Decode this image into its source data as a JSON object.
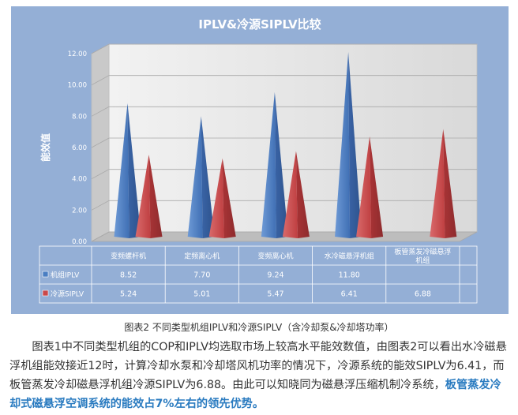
{
  "chart_data": {
    "type": "bar",
    "title": "IPLV&冷源SIPLV比较",
    "ylabel": "能效值",
    "ylim": [
      0,
      12
    ],
    "yticks": [
      "0.00",
      "2.00",
      "4.00",
      "6.00",
      "8.00",
      "10.00",
      "12.00"
    ],
    "categories": [
      "变频螺杆机",
      "定频离心机",
      "变频离心机",
      "水冷磁悬浮机组",
      "板管蒸发冷磁悬浮机组"
    ],
    "series": [
      {
        "name": "机组IPLV",
        "color": "#4a7ec2",
        "values": [
          8.52,
          7.7,
          9.24,
          11.8,
          null
        ],
        "labels": [
          "8.52",
          "7.70",
          "9.24",
          "11.80",
          ""
        ]
      },
      {
        "name": "冷源SIPLV",
        "color": "#c9484a",
        "values": [
          5.24,
          5.01,
          5.47,
          6.41,
          6.88
        ],
        "labels": [
          "5.24",
          "5.01",
          "5.47",
          "6.41",
          "6.88"
        ]
      }
    ],
    "background": "#94afd6",
    "wall": "#e6e6e6"
  },
  "caption": "图表2  不同类型机组IPLV和冷源SIPLV（含冷却泵&冷却塔功率）",
  "paragraph": {
    "text": "图表1中不同类型机组的COP和IPLV均选取市场上较高水平能效数值，由图表2可以看出水冷磁悬浮机组能效接近12时，计算冷却水泵和冷却塔风机功率的情况下，冷源系统的能效SIPLV为6.41，而板管蒸发冷却磁悬浮机组冷源SIPLV为6.88。由此可以知晓同为磁悬浮压缩机制冷系统，",
    "highlight": "板管蒸发冷却式磁悬浮空调系统的能效占7%左右的领先优势。"
  }
}
